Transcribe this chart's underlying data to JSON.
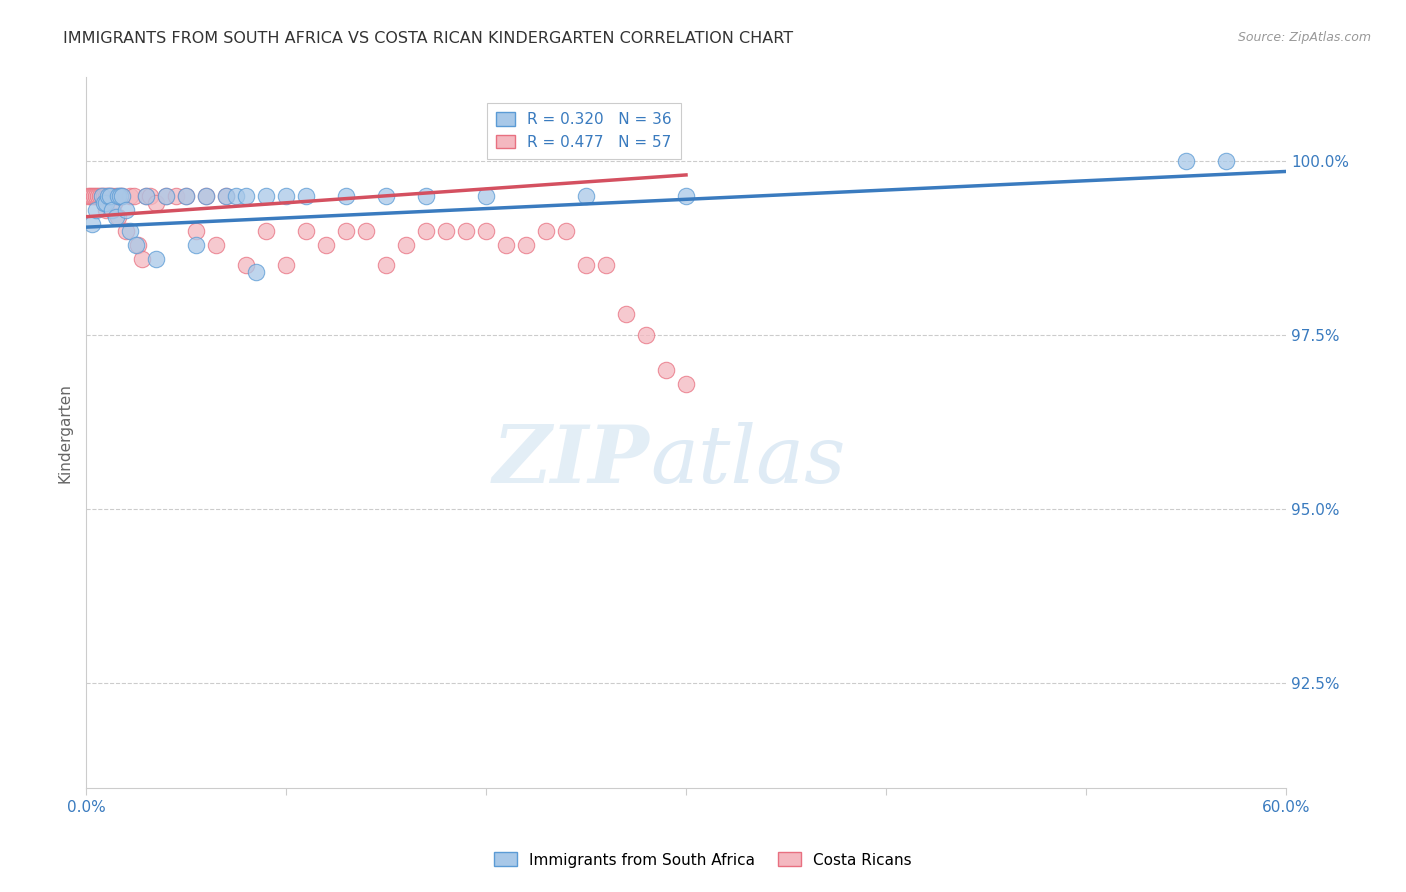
{
  "title": "IMMIGRANTS FROM SOUTH AFRICA VS COSTA RICAN KINDERGARTEN CORRELATION CHART",
  "source": "Source: ZipAtlas.com",
  "ylabel": "Kindergarten",
  "yticks": [
    92.5,
    95.0,
    97.5,
    100.0
  ],
  "ytick_labels": [
    "92.5%",
    "95.0%",
    "97.5%",
    "100.0%"
  ],
  "xmin": 0.0,
  "xmax": 60.0,
  "ymin": 91.0,
  "ymax": 101.2,
  "legend1_label": "R = 0.320   N = 36",
  "legend2_label": "R = 0.477   N = 57",
  "legend1_series": "Immigrants from South Africa",
  "legend2_series": "Costa Ricans",
  "blue_color": "#a8c8e8",
  "pink_color": "#f4b8c0",
  "blue_edge_color": "#5b9bd5",
  "pink_edge_color": "#e87080",
  "blue_line_color": "#3a7bbf",
  "pink_line_color": "#d45060",
  "blue_x": [
    0.3,
    0.5,
    0.8,
    0.9,
    1.0,
    1.1,
    1.2,
    1.3,
    1.5,
    1.6,
    1.7,
    1.8,
    2.0,
    2.2,
    2.5,
    3.0,
    3.5,
    4.0,
    5.0,
    5.5,
    6.0,
    7.0,
    7.5,
    8.0,
    8.5,
    9.0,
    10.0,
    11.0,
    13.0,
    15.0,
    17.0,
    20.0,
    25.0,
    30.0,
    55.0,
    57.0
  ],
  "blue_y": [
    99.1,
    99.3,
    99.5,
    99.4,
    99.4,
    99.5,
    99.5,
    99.3,
    99.2,
    99.5,
    99.5,
    99.5,
    99.3,
    99.0,
    98.8,
    99.5,
    98.6,
    99.5,
    99.5,
    98.8,
    99.5,
    99.5,
    99.5,
    99.5,
    98.4,
    99.5,
    99.5,
    99.5,
    99.5,
    99.5,
    99.5,
    99.5,
    99.5,
    99.5,
    100.0,
    100.0
  ],
  "pink_x": [
    0.1,
    0.2,
    0.3,
    0.4,
    0.5,
    0.6,
    0.7,
    0.8,
    0.9,
    1.0,
    1.0,
    1.1,
    1.2,
    1.3,
    1.4,
    1.5,
    1.6,
    1.7,
    1.8,
    2.0,
    2.2,
    2.4,
    2.6,
    2.8,
    3.0,
    3.2,
    3.5,
    4.0,
    4.5,
    5.0,
    5.5,
    6.0,
    6.5,
    7.0,
    8.0,
    9.0,
    10.0,
    11.0,
    12.0,
    13.0,
    14.0,
    15.0,
    16.0,
    17.0,
    18.0,
    19.0,
    20.0,
    21.0,
    22.0,
    23.0,
    24.0,
    25.0,
    26.0,
    27.0,
    28.0,
    29.0,
    30.0
  ],
  "pink_y": [
    99.5,
    99.5,
    99.5,
    99.5,
    99.5,
    99.5,
    99.5,
    99.5,
    99.5,
    99.5,
    99.3,
    99.5,
    99.5,
    99.5,
    99.4,
    99.5,
    99.2,
    99.5,
    99.5,
    99.0,
    99.5,
    99.5,
    98.8,
    98.6,
    99.5,
    99.5,
    99.4,
    99.5,
    99.5,
    99.5,
    99.0,
    99.5,
    98.8,
    99.5,
    98.5,
    99.0,
    98.5,
    99.0,
    98.8,
    99.0,
    99.0,
    98.5,
    98.8,
    99.0,
    99.0,
    99.0,
    99.0,
    98.8,
    98.8,
    99.0,
    99.0,
    98.5,
    98.5,
    97.8,
    97.5,
    97.0,
    96.8
  ],
  "blue_trendline_x": [
    0.0,
    60.0
  ],
  "blue_trendline_y": [
    99.05,
    99.85
  ],
  "pink_trendline_x": [
    0.0,
    30.0
  ],
  "pink_trendline_y": [
    99.2,
    99.8
  ]
}
